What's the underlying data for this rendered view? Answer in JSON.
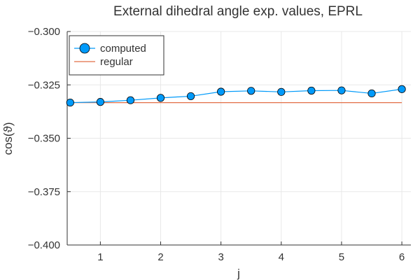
{
  "chart_data": {
    "type": "line",
    "title": "External dihedral angle exp. values, EPRL",
    "xlabel": "j",
    "ylabel": "cos(ϑ)",
    "xlim": [
      0.45,
      6.15
    ],
    "ylim": [
      -0.4,
      -0.3
    ],
    "grid": true,
    "legend_position": "top-left",
    "x_ticks": [
      1,
      2,
      3,
      4,
      5,
      6
    ],
    "x_tick_labels": [
      "1",
      "2",
      "3",
      "4",
      "5",
      "6"
    ],
    "y_ticks": [
      -0.4,
      -0.375,
      -0.35,
      -0.325,
      -0.3
    ],
    "y_tick_labels": [
      "−0.400",
      "−0.375",
      "−0.350",
      "−0.325",
      "−0.300"
    ],
    "series": [
      {
        "name": "computed",
        "color": "#009AFA",
        "marker": "circle",
        "x": [
          0.5,
          1.0,
          1.5,
          2.0,
          2.5,
          3.0,
          3.5,
          4.0,
          4.5,
          5.0,
          5.5,
          6.0
        ],
        "y": [
          -0.3333,
          -0.333,
          -0.3322,
          -0.3311,
          -0.3303,
          -0.3282,
          -0.3278,
          -0.3283,
          -0.3277,
          -0.3276,
          -0.329,
          -0.327
        ]
      },
      {
        "name": "regular",
        "color": "#E26F46",
        "marker": "none",
        "x": [
          0.5,
          6.0
        ],
        "y": [
          -0.33333,
          -0.33333
        ]
      }
    ]
  }
}
